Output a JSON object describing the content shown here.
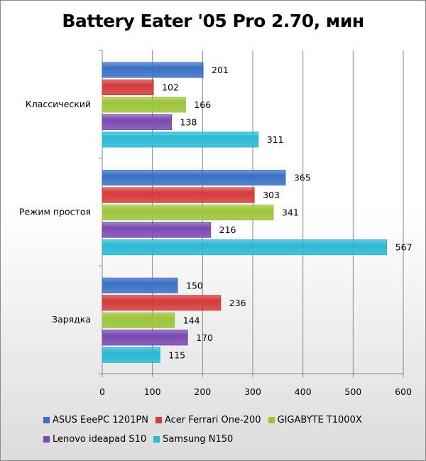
{
  "chart_data": {
    "type": "bar",
    "orientation": "horizontal",
    "title": "Battery Eater '05 Pro 2.70, мин",
    "categories": [
      "Классический",
      "Режим простоя",
      "Зарядка"
    ],
    "series": [
      {
        "name": "ASUS EeePC 1201PN",
        "color": "#3a6fc4",
        "values": [
          201,
          365,
          150
        ]
      },
      {
        "name": "Acer Ferrari One-200",
        "color": "#d43a3a",
        "values": [
          102,
          303,
          236
        ]
      },
      {
        "name": "GIGABYTE T1000X",
        "color": "#9cc43a",
        "values": [
          166,
          341,
          144
        ]
      },
      {
        "name": "Lenovo ideapad S10",
        "color": "#7a4ab0",
        "values": [
          138,
          216,
          170
        ]
      },
      {
        "name": "Samsung N150",
        "color": "#2ab8d4",
        "values": [
          311,
          567,
          115
        ]
      }
    ],
    "xlim": [
      0,
      600
    ],
    "xticks": [
      0,
      100,
      200,
      300,
      400,
      500,
      600
    ],
    "grid": true,
    "legend": "bottom"
  }
}
